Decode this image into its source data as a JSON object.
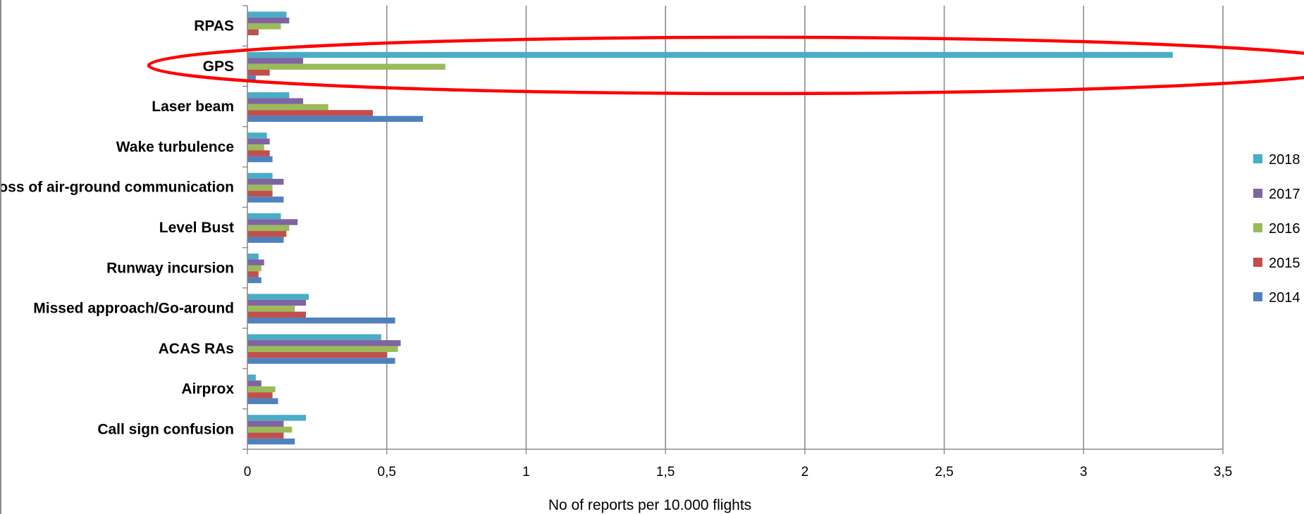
{
  "chart_data": {
    "type": "bar",
    "orientation": "horizontal",
    "categories": [
      "RPAS",
      "GPS",
      "Laser beam",
      "Wake turbulence",
      "Loss of air-ground communication",
      "Level Bust",
      "Runway incursion",
      "Missed approach/Go-around",
      "ACAS RAs",
      "Airprox",
      "Call sign confusion"
    ],
    "series": [
      {
        "name": "2018",
        "color": "#4bacc6",
        "values": [
          0.14,
          3.32,
          0.15,
          0.07,
          0.09,
          0.12,
          0.04,
          0.22,
          0.48,
          0.03,
          0.21
        ]
      },
      {
        "name": "2017",
        "color": "#8064a2",
        "values": [
          0.15,
          0.2,
          0.2,
          0.08,
          0.13,
          0.18,
          0.06,
          0.21,
          0.55,
          0.05,
          0.13
        ]
      },
      {
        "name": "2016",
        "color": "#9bbb59",
        "values": [
          0.12,
          0.71,
          0.29,
          0.06,
          0.09,
          0.15,
          0.05,
          0.17,
          0.54,
          0.1,
          0.16
        ]
      },
      {
        "name": "2015",
        "color": "#c0504d",
        "values": [
          0.04,
          0.08,
          0.45,
          0.08,
          0.09,
          0.14,
          0.04,
          0.21,
          0.5,
          0.09,
          0.13
        ]
      },
      {
        "name": "2014",
        "color": "#4f81bd",
        "values": [
          0.0,
          0.03,
          0.63,
          0.09,
          0.13,
          0.13,
          0.05,
          0.53,
          0.53,
          0.11,
          0.17
        ]
      }
    ],
    "xlim": [
      0,
      3.5
    ],
    "xticks": [
      0,
      0.5,
      1,
      1.5,
      2,
      2.5,
      3,
      3.5
    ],
    "xtick_labels": [
      "0",
      "0,5",
      "1",
      "1,5",
      "2",
      "2,5",
      "3",
      "3,5"
    ],
    "xlabel": "No of reports per 10.000 flights",
    "ylabel": "",
    "title": "",
    "grid": "vertical",
    "legend_position": "right",
    "legend_order": [
      "2018",
      "2017",
      "2016",
      "2015",
      "2014"
    ],
    "annotation": {
      "type": "ellipse",
      "target_category": "GPS",
      "color": "#ff0000"
    }
  }
}
